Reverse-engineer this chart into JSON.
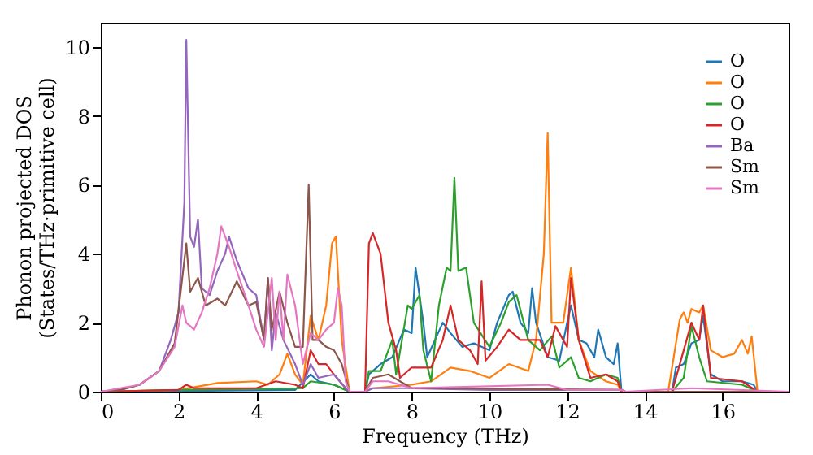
{
  "chart_data": {
    "type": "line",
    "xlabel": "Frequency (THz)",
    "ylabel": "Phonon projected DOS\n(States/THz·primitive cell)",
    "xlim": [
      0,
      17.7
    ],
    "ylim": [
      0,
      10.7
    ],
    "xticks": [
      0,
      2,
      4,
      6,
      8,
      10,
      12,
      14,
      16
    ],
    "yticks": [
      0,
      2,
      4,
      6,
      8,
      10
    ],
    "grid": false,
    "legend": "top right",
    "line_style": "solid",
    "marker": "none",
    "series": [
      {
        "name": "O",
        "color": "#1f77b4",
        "x": [
          0,
          5.0,
          5.4,
          5.6,
          6.0,
          6.4,
          6.8,
          6.9,
          7.2,
          7.5,
          7.8,
          8.0,
          8.1,
          8.3,
          8.4,
          8.6,
          8.8,
          9.0,
          9.3,
          9.6,
          9.8,
          10.0,
          10.2,
          10.5,
          10.6,
          10.8,
          11.0,
          11.1,
          11.2,
          11.5,
          11.8,
          12.0,
          12.1,
          12.3,
          12.5,
          12.7,
          12.8,
          13.0,
          13.2,
          13.3,
          13.4,
          14.7,
          14.8,
          15.0,
          15.2,
          15.4,
          15.5,
          15.7,
          16.0,
          16.5,
          16.8,
          16.9,
          17.7
        ],
        "values": [
          0,
          0.05,
          0.5,
          0.3,
          0.2,
          0,
          0,
          0.5,
          0.8,
          1.0,
          1.8,
          1.7,
          3.6,
          2.0,
          1.0,
          1.5,
          2.0,
          1.7,
          1.3,
          1.4,
          1.3,
          1.2,
          2.0,
          2.8,
          2.9,
          2.0,
          1.7,
          3.0,
          2.0,
          1.0,
          0.9,
          2.0,
          2.5,
          1.5,
          1.4,
          1.0,
          1.8,
          1.0,
          0.8,
          1.4,
          0,
          0,
          0.7,
          0.8,
          1.4,
          1.5,
          2.2,
          0.5,
          0.3,
          0.3,
          0.2,
          0,
          0
        ]
      },
      {
        "name": "O",
        "color": "#ff7f0e",
        "x": [
          0,
          2.0,
          3.0,
          4.0,
          4.3,
          4.6,
          4.8,
          5.0,
          5.2,
          5.4,
          5.6,
          5.8,
          5.95,
          6.05,
          6.2,
          6.4,
          6.8,
          7.0,
          8.0,
          8.5,
          9.0,
          9.5,
          10.0,
          10.5,
          11.0,
          11.2,
          11.4,
          11.5,
          11.6,
          11.9,
          12.1,
          12.3,
          12.6,
          13.0,
          13.3,
          13.4,
          14.6,
          14.9,
          15.0,
          15.1,
          15.2,
          15.4,
          15.5,
          15.7,
          16.0,
          16.3,
          16.5,
          16.65,
          16.75,
          16.9,
          17.7
        ],
        "values": [
          0,
          0.05,
          0.25,
          0.3,
          0.2,
          0.5,
          1.1,
          0.5,
          0.2,
          2.2,
          1.5,
          2.5,
          4.3,
          4.5,
          1.5,
          0,
          0,
          0.1,
          0.2,
          0.3,
          0.7,
          0.6,
          0.4,
          0.8,
          0.6,
          1.5,
          4.0,
          7.5,
          2.0,
          2.0,
          3.6,
          1.5,
          0.6,
          0.3,
          0.2,
          0,
          0,
          2.1,
          2.3,
          2.0,
          2.4,
          2.3,
          2.5,
          1.2,
          1.0,
          1.1,
          1.5,
          1.1,
          1.6,
          0,
          0
        ]
      },
      {
        "name": "O",
        "color": "#2ca02c",
        "x": [
          0,
          2.0,
          5.2,
          5.4,
          6.0,
          6.3,
          6.4,
          6.8,
          6.9,
          7.2,
          7.5,
          7.6,
          7.9,
          8.0,
          8.2,
          8.3,
          8.5,
          8.7,
          8.9,
          9.0,
          9.1,
          9.2,
          9.4,
          9.6,
          10.0,
          10.3,
          10.5,
          10.7,
          11.0,
          11.3,
          11.6,
          11.8,
          12.1,
          12.3,
          12.6,
          13.0,
          13.3,
          13.4,
          14.7,
          15.0,
          15.2,
          15.4,
          15.6,
          16.5,
          16.9,
          17.7
        ],
        "values": [
          0,
          0.05,
          0.1,
          0.3,
          0.2,
          0.05,
          0,
          0,
          0.6,
          0.6,
          1.5,
          0.5,
          2.5,
          2.4,
          2.8,
          1.2,
          0.3,
          2.5,
          3.6,
          3.5,
          6.2,
          3.5,
          3.6,
          2.0,
          1.3,
          2.0,
          2.6,
          2.8,
          1.5,
          1.2,
          1.6,
          0.7,
          1.0,
          0.4,
          0.3,
          0.5,
          0.4,
          0,
          0,
          0.4,
          1.9,
          1.0,
          0.3,
          0.2,
          0,
          0
        ]
      },
      {
        "name": "O",
        "color": "#d62728",
        "x": [
          0,
          2.0,
          2.2,
          2.4,
          4.0,
          4.5,
          5.0,
          5.2,
          5.4,
          5.6,
          5.8,
          6.0,
          6.3,
          6.4,
          6.8,
          6.9,
          7.0,
          7.2,
          7.4,
          7.6,
          7.7,
          8.0,
          8.3,
          8.5,
          8.8,
          9.0,
          9.2,
          9.5,
          9.7,
          9.8,
          9.9,
          10.2,
          10.5,
          10.8,
          11.0,
          11.3,
          11.5,
          11.7,
          12.0,
          12.1,
          12.3,
          12.6,
          13.0,
          13.3,
          13.4,
          14.7,
          15.0,
          15.2,
          15.4,
          15.5,
          15.7,
          16.5,
          16.9,
          17.7
        ],
        "values": [
          0,
          0.05,
          0.2,
          0.1,
          0.1,
          0.3,
          0.2,
          0.1,
          1.2,
          0.8,
          0.8,
          0.5,
          0.1,
          0,
          0,
          4.3,
          4.6,
          4.0,
          2.0,
          1.2,
          0.4,
          0.7,
          0.7,
          0.7,
          1.5,
          2.5,
          1.5,
          1.2,
          0.8,
          3.2,
          0.9,
          1.3,
          1.8,
          1.5,
          1.5,
          1.5,
          1.0,
          1.9,
          1.3,
          3.3,
          1.5,
          0.4,
          0.5,
          0.3,
          0,
          0,
          1.2,
          2.0,
          1.5,
          2.5,
          0.4,
          0.3,
          0,
          0
        ]
      },
      {
        "name": "Ba",
        "color": "#9467bd",
        "x": [
          0,
          0.5,
          1.0,
          1.5,
          1.8,
          2.0,
          2.15,
          2.2,
          2.3,
          2.4,
          2.5,
          2.6,
          2.8,
          3.0,
          3.2,
          3.3,
          3.5,
          3.8,
          4.0,
          4.2,
          4.3,
          4.4,
          4.5,
          4.7,
          5.0,
          5.2,
          5.4,
          5.6,
          6.0,
          6.3,
          6.4,
          6.8,
          7.0,
          8.0,
          10.0,
          13.4,
          13.5,
          17.7
        ],
        "values": [
          0,
          0.05,
          0.2,
          0.6,
          1.5,
          2.3,
          5.5,
          10.2,
          4.5,
          4.2,
          5.0,
          3.0,
          2.8,
          3.5,
          4.0,
          4.5,
          3.8,
          3.0,
          2.8,
          1.5,
          3.3,
          1.2,
          2.3,
          1.5,
          0.8,
          0.2,
          0.8,
          0.4,
          0.5,
          0.1,
          0,
          0,
          0.1,
          0.1,
          0.05,
          0.05,
          0,
          0
        ]
      },
      {
        "name": "Sm",
        "color": "#8c564b",
        "x": [
          0,
          0.5,
          1.0,
          1.5,
          1.9,
          2.2,
          2.3,
          2.5,
          2.7,
          3.0,
          3.2,
          3.5,
          3.8,
          4.0,
          4.2,
          4.3,
          4.4,
          4.6,
          4.8,
          5.0,
          5.2,
          5.35,
          5.45,
          5.6,
          5.8,
          6.0,
          6.2,
          6.4,
          6.8,
          7.0,
          7.4,
          7.7,
          8.0,
          9.0,
          13.4,
          13.5,
          17.7
        ],
        "values": [
          0,
          0.05,
          0.2,
          0.6,
          1.4,
          4.3,
          2.9,
          3.3,
          2.5,
          2.7,
          2.5,
          3.2,
          2.5,
          2.6,
          1.5,
          3.3,
          1.8,
          2.9,
          2.0,
          1.3,
          1.3,
          6.0,
          1.5,
          1.5,
          1.3,
          1.2,
          0.8,
          0,
          0,
          0.4,
          0.5,
          0.3,
          0.1,
          0.1,
          0.05,
          0,
          0
        ]
      },
      {
        "name": "Sm",
        "color": "#e377c2",
        "x": [
          0,
          1.0,
          1.5,
          1.9,
          2.1,
          2.2,
          2.4,
          2.6,
          2.8,
          3.0,
          3.1,
          3.3,
          3.5,
          3.8,
          4.0,
          4.2,
          4.4,
          4.5,
          4.6,
          4.7,
          4.8,
          5.0,
          5.2,
          5.4,
          5.6,
          5.8,
          6.0,
          6.1,
          6.2,
          6.3,
          6.4,
          6.8,
          7.0,
          7.4,
          7.7,
          8.0,
          11.5,
          12.0,
          13.4,
          13.5,
          15.2,
          17.7
        ],
        "values": [
          0,
          0.2,
          0.6,
          1.3,
          2.5,
          2.0,
          1.8,
          2.3,
          3.0,
          4.0,
          4.8,
          4.2,
          3.5,
          2.5,
          1.8,
          1.3,
          3.3,
          1.5,
          2.9,
          1.5,
          3.4,
          2.5,
          0.8,
          1.7,
          1.5,
          1.8,
          2.0,
          3.0,
          2.5,
          0.3,
          0,
          0,
          0.3,
          0.3,
          0.2,
          0.1,
          0.2,
          0.05,
          0.05,
          0,
          0.1,
          0
        ]
      }
    ]
  }
}
